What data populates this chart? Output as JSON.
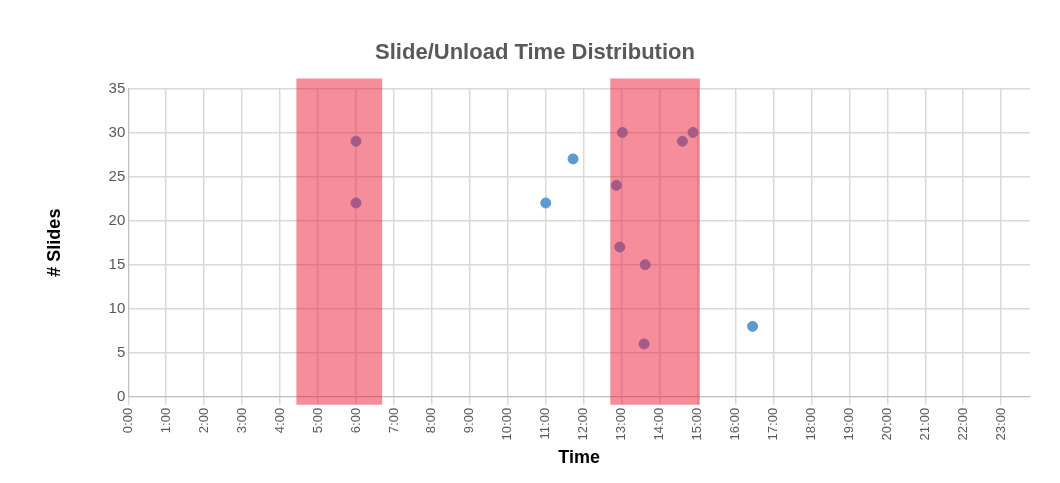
{
  "chart_data": {
    "type": "scatter",
    "title": "Slide/Unload Time Distribution",
    "xlabel": "Time",
    "ylabel": "# Slides",
    "series": [
      {
        "color": "#5b9bd5",
        "x": [
          6.0,
          6.0,
          11.0,
          11.72,
          12.86,
          13.02,
          12.95,
          13.62,
          13.59,
          14.6,
          14.88,
          16.45
        ],
        "values": [
          29,
          22,
          22,
          27,
          24,
          30,
          17,
          15,
          6,
          29,
          30,
          8
        ]
      }
    ],
    "xlim": [
      0,
      23.76
    ],
    "xticks": [
      {
        "value": 0,
        "label": "0:00"
      },
      {
        "value": 1,
        "label": "1:00"
      },
      {
        "value": 2,
        "label": "2:00"
      },
      {
        "value": 3,
        "label": "3:00"
      },
      {
        "value": 4,
        "label": "4:00"
      },
      {
        "value": 5,
        "label": "5:00"
      },
      {
        "value": 6,
        "label": "6:00"
      },
      {
        "value": 7,
        "label": "7:00"
      },
      {
        "value": 8,
        "label": "8:00"
      },
      {
        "value": 9,
        "label": "9:00"
      },
      {
        "value": 10,
        "label": "10:00"
      },
      {
        "value": 11,
        "label": "11:00"
      },
      {
        "value": 12,
        "label": "12:00"
      },
      {
        "value": 13,
        "label": "13:00"
      },
      {
        "value": 14,
        "label": "14:00"
      },
      {
        "value": 15,
        "label": "15:00"
      },
      {
        "value": 16,
        "label": "16:00"
      },
      {
        "value": 17,
        "label": "17:00"
      },
      {
        "value": 18,
        "label": "18:00"
      },
      {
        "value": 19,
        "label": "19:00"
      },
      {
        "value": 20,
        "label": "20:00"
      },
      {
        "value": 21,
        "label": "21:00"
      },
      {
        "value": 22,
        "label": "22:00"
      },
      {
        "value": 23,
        "label": "23:00"
      }
    ],
    "ylim": [
      0,
      35
    ],
    "yticks": [
      0,
      5,
      10,
      15,
      20,
      25,
      30,
      35
    ],
    "bands": [
      {
        "axis": "x",
        "from": 4.43,
        "to": 6.69,
        "color": "#ed1c35"
      },
      {
        "axis": "x",
        "from": 12.7,
        "to": 15.06,
        "color": "#ed1c35"
      }
    ],
    "grid": true,
    "legend": false,
    "marker": "circle"
  }
}
